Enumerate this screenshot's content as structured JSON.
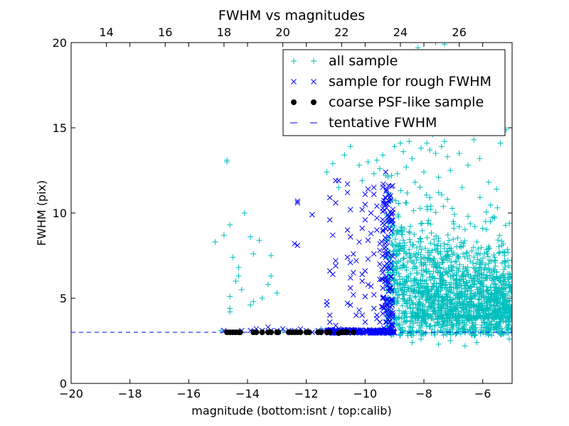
{
  "chart_data": {
    "type": "scatter",
    "title": "FWHM vs magnitudes",
    "xlabel": "magnitude (bottom:isnt / top:calib)",
    "ylabel": "FWHM (pix)",
    "xlim": [
      -20,
      -5
    ],
    "ylim": [
      0,
      20
    ],
    "x_ticks": [
      -20,
      -18,
      -16,
      -14,
      -12,
      -10,
      -8,
      -6
    ],
    "x_tick_labels": [
      "−20",
      "−18",
      "−16",
      "−14",
      "−12",
      "−10",
      "−8",
      "−6"
    ],
    "y_ticks": [
      0,
      5,
      10,
      15,
      20
    ],
    "y_tick_labels": [
      "0",
      "5",
      "10",
      "15",
      "20"
    ],
    "top_x_ticks": [
      14,
      16,
      18,
      20,
      22,
      24,
      26
    ],
    "top_x_tick_labels": [
      "14",
      "16",
      "18",
      "20",
      "22",
      "24",
      "26"
    ],
    "top_axis_offset": 32.8,
    "legend_position": "upper-right",
    "colors": {
      "all": "#00bfbf",
      "rough": "#0000ff",
      "coarse": "#000000",
      "tentative": "#0000ff"
    },
    "series": [
      {
        "name": "all sample",
        "marker": "plus",
        "color": "#00bfbf",
        "points": [
          [
            -15.1,
            8.3
          ],
          [
            -14.8,
            8.7
          ],
          [
            -14.7,
            13.0
          ],
          [
            -14.7,
            13.1
          ],
          [
            -14.6,
            9.3
          ],
          [
            -14.5,
            7.4
          ],
          [
            -14.6,
            5.1
          ],
          [
            -14.6,
            4.4
          ],
          [
            -14.6,
            4.2
          ],
          [
            -14.4,
            6.0
          ],
          [
            -14.3,
            6.8
          ],
          [
            -14.3,
            6.3
          ],
          [
            -14.2,
            5.5
          ],
          [
            -14.1,
            10.0
          ],
          [
            -13.9,
            8.6
          ],
          [
            -13.8,
            7.6
          ],
          [
            -13.8,
            4.8
          ],
          [
            -13.9,
            4.6
          ],
          [
            -13.6,
            8.4
          ],
          [
            -13.5,
            5.0
          ],
          [
            -13.3,
            5.8
          ],
          [
            -13.2,
            7.5
          ],
          [
            -13.2,
            6.3
          ],
          [
            -13.0,
            5.3
          ],
          [
            -14.9,
            3.1
          ],
          [
            -13.7,
            3.0
          ],
          [
            -12.8,
            3.1
          ],
          [
            -11.5,
            3.2
          ],
          [
            -11.3,
            12.4
          ],
          [
            -11.1,
            12.9
          ],
          [
            -10.9,
            11.5
          ],
          [
            -10.7,
            13.4
          ],
          [
            -10.5,
            13.9
          ],
          [
            -10.2,
            12.8
          ],
          [
            -10.1,
            11.9
          ],
          [
            -9.9,
            13.0
          ],
          [
            -9.7,
            12.3
          ],
          [
            -9.6,
            13.1
          ],
          [
            -9.5,
            12.6
          ],
          [
            -9.4,
            13.4
          ],
          [
            -9.3,
            12.2
          ],
          [
            -9.2,
            11.1
          ],
          [
            -9.1,
            12.2
          ],
          [
            -9.0,
            13.9
          ],
          [
            -8.9,
            12.3
          ],
          [
            -8.8,
            14.1
          ],
          [
            -8.7,
            13.6
          ],
          [
            -8.6,
            12.7
          ],
          [
            -8.5,
            14.2
          ],
          [
            -8.4,
            13.2
          ],
          [
            -8.3,
            11.8
          ],
          [
            -8.2,
            14.8
          ],
          [
            -8.2,
            19.7
          ],
          [
            -8.1,
            13.8
          ],
          [
            -8.0,
            12.4
          ],
          [
            -7.9,
            14.1
          ],
          [
            -7.8,
            13.7
          ],
          [
            -7.7,
            14.6
          ],
          [
            -7.6,
            13.5
          ],
          [
            -7.5,
            12.1
          ],
          [
            -7.4,
            13.9
          ],
          [
            -7.3,
            14.2
          ],
          [
            -7.2,
            13.3
          ],
          [
            -7.1,
            12.5
          ],
          [
            -6.9,
            14.8
          ],
          [
            -6.8,
            13.5
          ],
          [
            -6.7,
            11.5
          ],
          [
            -6.5,
            12.8
          ],
          [
            -6.3,
            14.3
          ],
          [
            -6.1,
            13.2
          ],
          [
            -5.8,
            11.8
          ],
          [
            -5.6,
            9.7
          ],
          [
            -5.4,
            14.1
          ],
          [
            -5.2,
            14.9
          ],
          [
            -5.5,
            10.3
          ],
          [
            -5.9,
            9.5
          ],
          [
            -6.2,
            8.3
          ],
          [
            -6.5,
            9.8
          ],
          [
            -6.8,
            9.2
          ],
          [
            -7.2,
            10.8
          ],
          [
            -7.5,
            11.2
          ],
          [
            -7.8,
            10.9
          ],
          [
            -6.0,
            9.1
          ],
          [
            -5.3,
            8.2
          ],
          [
            -5.6,
            7.4
          ],
          [
            -6.1,
            7.1
          ],
          [
            -5.1,
            5.4
          ],
          [
            -5.3,
            5.1
          ],
          [
            -5.2,
            4.6
          ],
          [
            -5.4,
            4.3
          ],
          [
            -5.6,
            4.9
          ],
          [
            -5.8,
            4.1
          ],
          [
            -5.2,
            3.6
          ],
          [
            -5.1,
            3.2
          ],
          [
            -5.3,
            2.9
          ],
          [
            -5.5,
            3.3
          ],
          [
            -5.1,
            2.6
          ],
          [
            -5.7,
            2.8
          ],
          [
            -7.6,
            20.0
          ],
          [
            -7.3,
            19.9
          ],
          [
            -6.2,
            2.4
          ],
          [
            -6.6,
            2.2
          ],
          [
            -7.1,
            2.5
          ],
          [
            -7.5,
            2.3
          ],
          [
            -8.1,
            2.6
          ],
          [
            -8.4,
            2.4
          ]
        ],
        "cloud": {
          "x_range": [
            -9.3,
            -5.0
          ],
          "y_center": 4.6,
          "count": 1800
        }
      },
      {
        "name": "sample for rough FWHM",
        "marker": "x",
        "color": "#0000ff",
        "points": [
          [
            -14.8,
            3.1
          ],
          [
            -14.5,
            3.0
          ],
          [
            -14.2,
            3.1
          ],
          [
            -13.9,
            3.1
          ],
          [
            -13.7,
            3.2
          ],
          [
            -13.5,
            3.1
          ],
          [
            -13.3,
            3.3
          ],
          [
            -13.2,
            3.1
          ],
          [
            -13.0,
            3.1
          ],
          [
            -12.8,
            3.2
          ],
          [
            -12.6,
            3.1
          ],
          [
            -12.4,
            3.1
          ],
          [
            -12.3,
            10.7
          ],
          [
            -12.3,
            10.6
          ],
          [
            -12.4,
            8.2
          ],
          [
            -12.3,
            8.1
          ],
          [
            -12.2,
            3.2
          ],
          [
            -12.0,
            3.1
          ],
          [
            -11.8,
            3.0
          ],
          [
            -11.8,
            9.9
          ],
          [
            -11.6,
            3.1
          ],
          [
            -11.4,
            3.1
          ],
          [
            -11.3,
            4.8
          ],
          [
            -11.3,
            4.6
          ],
          [
            -11.2,
            9.6
          ],
          [
            -11.1,
            8.7
          ],
          [
            -11.2,
            6.6
          ],
          [
            -11.1,
            6.4
          ],
          [
            -11.2,
            10.9
          ],
          [
            -11.0,
            10.6
          ],
          [
            -11.2,
            4.0
          ],
          [
            -11.2,
            3.6
          ],
          [
            -11.0,
            3.4
          ],
          [
            -10.9,
            3.2
          ],
          [
            -10.8,
            3.1
          ],
          [
            -11.0,
            11.9
          ],
          [
            -10.9,
            11.9
          ],
          [
            -11.0,
            7.2
          ],
          [
            -11.0,
            6.9
          ],
          [
            -10.6,
            11.2
          ],
          [
            -10.6,
            11.7
          ],
          [
            -10.5,
            10.2
          ],
          [
            -10.6,
            9.0
          ],
          [
            -10.5,
            8.6
          ],
          [
            -10.6,
            7.4
          ],
          [
            -10.5,
            7.1
          ],
          [
            -10.4,
            7.6
          ],
          [
            -10.3,
            7.2
          ],
          [
            -10.5,
            6.2
          ],
          [
            -10.4,
            6.5
          ],
          [
            -10.5,
            5.6
          ],
          [
            -10.4,
            5.2
          ],
          [
            -10.6,
            4.7
          ],
          [
            -10.5,
            4.6
          ],
          [
            -10.3,
            4.0
          ],
          [
            -10.2,
            4.3
          ],
          [
            -10.1,
            4.0
          ],
          [
            -10.0,
            3.6
          ],
          [
            -10.0,
            5.1
          ],
          [
            -10.1,
            6.0
          ],
          [
            -10.1,
            6.4
          ],
          [
            -10.0,
            6.6
          ],
          [
            -9.9,
            5.8
          ],
          [
            -9.9,
            7.3
          ],
          [
            -10.2,
            8.3
          ],
          [
            -10.1,
            9.1
          ],
          [
            -10.0,
            9.6
          ],
          [
            -10.1,
            10.2
          ],
          [
            -10.0,
            10.5
          ],
          [
            -10.0,
            11.1
          ],
          [
            -9.9,
            11.4
          ],
          [
            -9.8,
            10.0
          ],
          [
            -9.8,
            8.8
          ],
          [
            -9.9,
            8.4
          ],
          [
            -9.7,
            7.6
          ],
          [
            -9.8,
            5.7
          ],
          [
            -9.7,
            5.2
          ],
          [
            -9.7,
            4.4
          ],
          [
            -9.6,
            4.0
          ],
          [
            -9.6,
            3.8
          ],
          [
            -9.5,
            3.6
          ],
          [
            -9.7,
            11.5
          ],
          [
            -9.7,
            11.1
          ],
          [
            -9.6,
            10.4
          ],
          [
            -9.6,
            9.7
          ],
          [
            -9.6,
            9.0
          ],
          [
            -9.5,
            8.2
          ],
          [
            -9.5,
            7.8
          ],
          [
            -9.5,
            7.0
          ],
          [
            -9.4,
            6.5
          ],
          [
            -9.5,
            6.1
          ],
          [
            -9.4,
            5.6
          ],
          [
            -9.4,
            5.0
          ],
          [
            -9.4,
            4.5
          ],
          [
            -9.4,
            4.1
          ],
          [
            -9.3,
            3.6
          ],
          [
            -9.4,
            9.4
          ],
          [
            -9.4,
            10.1
          ],
          [
            -9.3,
            10.9
          ],
          [
            -9.3,
            8.0
          ],
          [
            -9.3,
            7.4
          ],
          [
            -9.2,
            6.8
          ],
          [
            -9.3,
            6.0
          ],
          [
            -9.2,
            5.4
          ],
          [
            -9.2,
            4.8
          ],
          [
            -9.2,
            4.3
          ],
          [
            -9.2,
            3.9
          ],
          [
            -9.1,
            3.5
          ],
          [
            -9.2,
            3.3
          ],
          [
            -9.3,
            12.4
          ],
          [
            -9.2,
            11.6
          ],
          [
            -10.3,
            3.1
          ],
          [
            -10.6,
            3.1
          ],
          [
            -10.8,
            3.0
          ],
          [
            -11.0,
            3.1
          ]
        ],
        "band": {
          "x_range": [
            -11.3,
            -9.0
          ],
          "y_center": 3.05,
          "count": 220
        }
      },
      {
        "name": "coarse PSF-like sample",
        "marker": "dot",
        "color": "#000000",
        "points": [
          [
            -14.7,
            3.0
          ],
          [
            -14.6,
            3.0
          ],
          [
            -14.5,
            3.0
          ],
          [
            -14.4,
            3.0
          ],
          [
            -14.3,
            3.0
          ],
          [
            -14.25,
            3.0
          ],
          [
            -13.8,
            3.0
          ],
          [
            -13.7,
            3.0
          ],
          [
            -13.5,
            3.0
          ],
          [
            -13.3,
            3.0
          ],
          [
            -13.2,
            3.0
          ],
          [
            -13.0,
            3.0
          ],
          [
            -12.95,
            3.0
          ],
          [
            -12.6,
            3.0
          ],
          [
            -12.5,
            3.0
          ],
          [
            -12.4,
            3.0
          ],
          [
            -12.3,
            3.0
          ],
          [
            -12.2,
            3.0
          ],
          [
            -12.0,
            3.0
          ],
          [
            -11.9,
            3.0
          ],
          [
            -11.6,
            3.0
          ],
          [
            -11.5,
            3.0
          ],
          [
            -11.3,
            3.0
          ],
          [
            -11.2,
            3.0
          ],
          [
            -10.9,
            2.95
          ],
          [
            -10.8,
            3.0
          ],
          [
            -10.7,
            3.0
          ],
          [
            -10.6,
            3.0
          ],
          [
            -10.4,
            3.0
          ]
        ]
      }
    ],
    "tentative_fwhm": {
      "name": "tentative FWHM",
      "y": 3.0,
      "style": "dashed",
      "color": "#0000ff"
    }
  }
}
